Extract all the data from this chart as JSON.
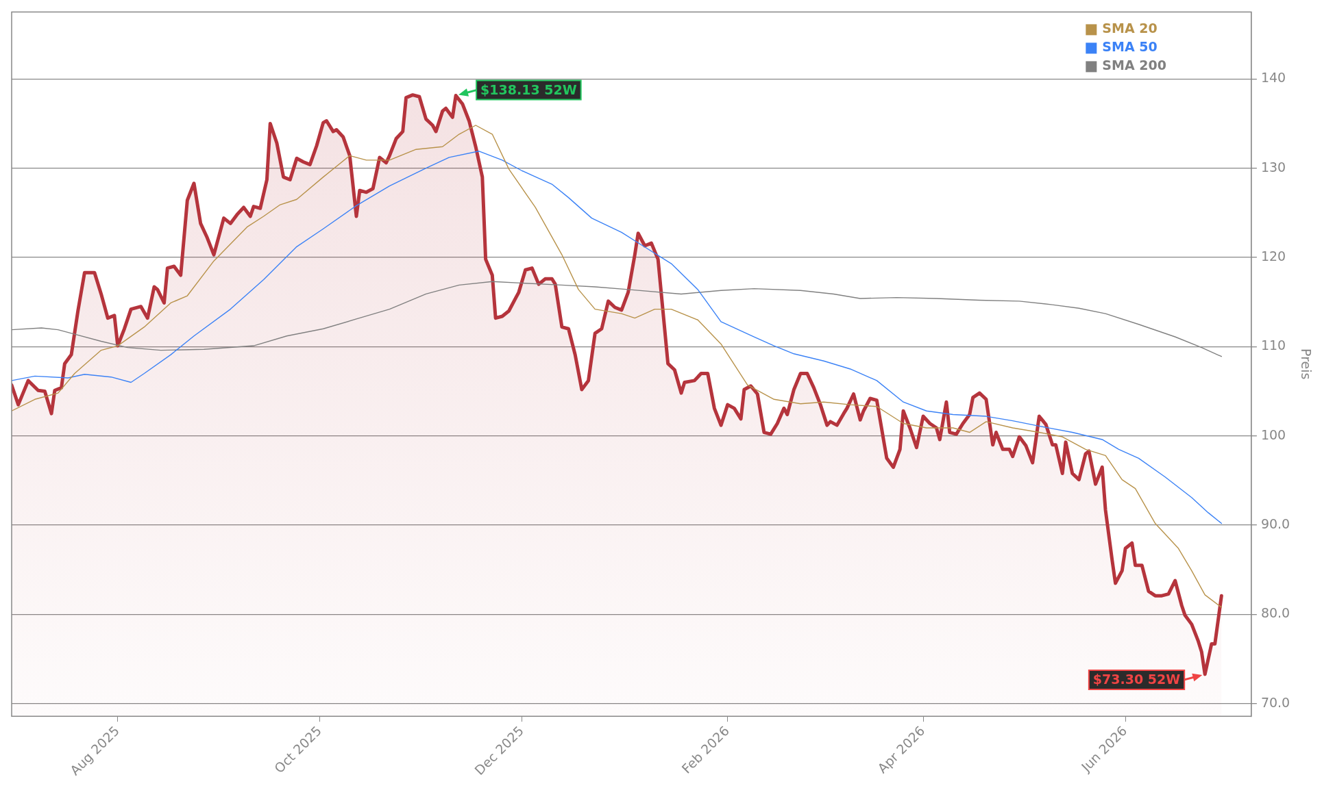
{
  "chart_data": {
    "type": "line",
    "ylabel": "Preis",
    "xlim": [
      "2025-06-30",
      "2026-07-09"
    ],
    "ylim": [
      68.6,
      147.5
    ],
    "xticks": [
      {
        "value": "2025-08-01",
        "label": "Aug 2025"
      },
      {
        "value": "2025-10-01",
        "label": "Oct 2025"
      },
      {
        "value": "2025-12-01",
        "label": "Dec 2025"
      },
      {
        "value": "2026-02-01",
        "label": "Feb 2026"
      },
      {
        "value": "2026-04-01",
        "label": "Apr 2026"
      },
      {
        "value": "2026-06-01",
        "label": "Jun 2026"
      }
    ],
    "yticks": [
      {
        "value": 70,
        "label": "70.0"
      },
      {
        "value": 80,
        "label": "80.0"
      },
      {
        "value": 90,
        "label": "90.0"
      },
      100,
      110,
      120,
      130,
      140
    ],
    "grid": "y",
    "legend": "top right",
    "marker": "none",
    "line_style": "solid",
    "annotations": [
      {
        "text": "$138.13 52W",
        "x": "2025-11-11",
        "y": 138.13
      },
      {
        "text": "$73.30 52W",
        "x": "2026-06-25",
        "y": 73.3
      }
    ],
    "series": [
      {
        "type": "area",
        "color": "#b5343c",
        "x": [
          "2025-06-30",
          "2025-07-02",
          "2025-07-05",
          "2025-07-08",
          "2025-07-10",
          "2025-07-12",
          "2025-07-13",
          "2025-07-15",
          "2025-07-16",
          "2025-07-18",
          "2025-07-20",
          "2025-07-22",
          "2025-07-25",
          "2025-07-27",
          "2025-07-29",
          "2025-07-31",
          "2025-08-01",
          "2025-08-03",
          "2025-08-05",
          "2025-08-08",
          "2025-08-10",
          "2025-08-12",
          "2025-08-13",
          "2025-08-15",
          "2025-08-16",
          "2025-08-18",
          "2025-08-20",
          "2025-08-22",
          "2025-08-24",
          "2025-08-26",
          "2025-08-28",
          "2025-08-30",
          "2025-09-02",
          "2025-09-04",
          "2025-09-06",
          "2025-09-08",
          "2025-09-10",
          "2025-09-11",
          "2025-09-13",
          "2025-09-15",
          "2025-09-16",
          "2025-09-18",
          "2025-09-20",
          "2025-09-22",
          "2025-09-24",
          "2025-09-26",
          "2025-09-28",
          "2025-09-30",
          "2025-10-02",
          "2025-10-03",
          "2025-10-05",
          "2025-10-06",
          "2025-10-08",
          "2025-10-10",
          "2025-10-12",
          "2025-10-13",
          "2025-10-15",
          "2025-10-17",
          "2025-10-19",
          "2025-10-21",
          "2025-10-22",
          "2025-10-24",
          "2025-10-26",
          "2025-10-27",
          "2025-10-29",
          "2025-10-31",
          "2025-11-02",
          "2025-11-04",
          "2025-11-05",
          "2025-11-07",
          "2025-11-08",
          "2025-11-10",
          "2025-11-11",
          "2025-11-13",
          "2025-11-15",
          "2025-11-17",
          "2025-11-19",
          "2025-11-20",
          "2025-11-22",
          "2025-11-23",
          "2025-11-25",
          "2025-11-27",
          "2025-11-29",
          "2025-11-30",
          "2025-12-02",
          "2025-12-04",
          "2025-12-06",
          "2025-12-08",
          "2025-12-10",
          "2025-12-11",
          "2025-12-13",
          "2025-12-15",
          "2025-12-17",
          "2025-12-19",
          "2025-12-21",
          "2025-12-23",
          "2025-12-25",
          "2025-12-27",
          "2025-12-29",
          "2025-12-31",
          "2026-01-02",
          "2026-01-04",
          "2026-01-05",
          "2026-01-07",
          "2026-01-09",
          "2026-01-11",
          "2026-01-13",
          "2026-01-14",
          "2026-01-16",
          "2026-01-18",
          "2026-01-19",
          "2026-01-22",
          "2026-01-24",
          "2026-01-26",
          "2026-01-28",
          "2026-01-30",
          "2026-02-01",
          "2026-02-03",
          "2026-02-05",
          "2026-02-06",
          "2026-02-08",
          "2026-02-10",
          "2026-02-12",
          "2026-02-14",
          "2026-02-16",
          "2026-02-18",
          "2026-02-19",
          "2026-02-21",
          "2026-02-23",
          "2026-02-25",
          "2026-02-27",
          "2026-03-01",
          "2026-03-03",
          "2026-03-04",
          "2026-03-06",
          "2026-03-08",
          "2026-03-09",
          "2026-03-11",
          "2026-03-13",
          "2026-03-14",
          "2026-03-16",
          "2026-03-18",
          "2026-03-21",
          "2026-03-23",
          "2026-03-25",
          "2026-03-26",
          "2026-03-28",
          "2026-03-30",
          "2026-04-01",
          "2026-04-03",
          "2026-04-05",
          "2026-04-06",
          "2026-04-08",
          "2026-04-09",
          "2026-04-11",
          "2026-04-13",
          "2026-04-15",
          "2026-04-16",
          "2026-04-18",
          "2026-04-20",
          "2026-04-22",
          "2026-04-23",
          "2026-04-25",
          "2026-04-27",
          "2026-04-28",
          "2026-04-30",
          "2026-05-02",
          "2026-05-04",
          "2026-05-06",
          "2026-05-08",
          "2026-05-10",
          "2026-05-11",
          "2026-05-13",
          "2026-05-14",
          "2026-05-16",
          "2026-05-18",
          "2026-05-20",
          "2026-05-21",
          "2026-05-23",
          "2026-05-25",
          "2026-05-26",
          "2026-05-28",
          "2026-05-29",
          "2026-05-31",
          "2026-06-01",
          "2026-06-03",
          "2026-06-04",
          "2026-06-06",
          "2026-06-08",
          "2026-06-10",
          "2026-06-12",
          "2026-06-14",
          "2026-06-16",
          "2026-06-18",
          "2026-06-19",
          "2026-06-21",
          "2026-06-23",
          "2026-06-24",
          "2026-06-25",
          "2026-06-27",
          "2026-06-28",
          "2026-06-30"
        ],
        "values": [
          105.7,
          103.5,
          106.2,
          105.1,
          105,
          102.5,
          105.1,
          105.4,
          108.1,
          109.1,
          114,
          118.3,
          118.3,
          115.9,
          113.2,
          113.5,
          110.1,
          112,
          114.2,
          114.5,
          113.2,
          116.7,
          116.4,
          114.9,
          118.8,
          119,
          118,
          126.4,
          128.3,
          123.8,
          122.2,
          120.3,
          124.4,
          123.8,
          124.8,
          125.6,
          124.6,
          125.7,
          125.5,
          128.7,
          135,
          132.8,
          129,
          128.7,
          131.1,
          130.7,
          130.4,
          132.5,
          135.1,
          135.3,
          134.1,
          134.3,
          133.5,
          131.4,
          124.6,
          127.5,
          127.3,
          127.7,
          131.2,
          130.6,
          131.4,
          133.3,
          134.1,
          137.9,
          138.2,
          138,
          135.5,
          134.8,
          134.1,
          136.4,
          136.7,
          135.7,
          138.13,
          137.2,
          135.3,
          132.4,
          129,
          119.8,
          118,
          113.2,
          113.4,
          114,
          115.4,
          116.1,
          118.6,
          118.8,
          117,
          117.6,
          117.6,
          117,
          112.2,
          112,
          109.1,
          105.2,
          106.2,
          111.5,
          112,
          115.1,
          114.4,
          114.1,
          116.1,
          120.3,
          122.7,
          121.3,
          121.6,
          119.8,
          112,
          108.1,
          107.4,
          104.8,
          106,
          106.2,
          107,
          107,
          103.1,
          101.2,
          103.5,
          103.1,
          101.9,
          105.2,
          105.6,
          104.7,
          100.4,
          100.2,
          101.4,
          103.1,
          102.4,
          105.2,
          107,
          107,
          105.4,
          103.5,
          101.2,
          101.6,
          101.2,
          102.5,
          103.1,
          104.7,
          101.8,
          102.8,
          104.2,
          104,
          97.5,
          96.5,
          98.5,
          102.8,
          100.9,
          98.7,
          102.2,
          101.4,
          100.9,
          99.6,
          103.8,
          100.4,
          100.2,
          101.4,
          102.4,
          104.3,
          104.8,
          104.1,
          99,
          100.4,
          98.5,
          98.5,
          97.7,
          99.9,
          98.9,
          97,
          102.2,
          101.3,
          99,
          99,
          95.8,
          99.3,
          95.8,
          95.1,
          98,
          98.3,
          94.6,
          96.5,
          91.7,
          86.1,
          83.5,
          84.9,
          87.4,
          88,
          85.5,
          85.5,
          82.6,
          82.1,
          82.1,
          82.3,
          83.8,
          81,
          79.9,
          78.9,
          77,
          75.8,
          73.3,
          76.7,
          76.7,
          82.1
        ]
      },
      {
        "type": "line",
        "name": "SMA 20",
        "color": "#b8924a",
        "x": [
          "2025-06-30",
          "2025-07-07",
          "2025-07-14",
          "2025-07-19",
          "2025-07-27",
          "2025-08-01",
          "2025-08-09",
          "2025-08-17",
          "2025-08-22",
          "2025-08-30",
          "2025-09-09",
          "2025-09-14",
          "2025-09-19",
          "2025-09-24",
          "2025-10-02",
          "2025-10-10",
          "2025-10-15",
          "2025-10-22",
          "2025-10-30",
          "2025-11-07",
          "2025-11-12",
          "2025-11-17",
          "2025-11-22",
          "2025-11-27",
          "2025-12-05",
          "2025-12-13",
          "2025-12-18",
          "2025-12-23",
          "2025-12-31",
          "2026-01-04",
          "2026-01-10",
          "2026-01-15",
          "2026-01-23",
          "2026-01-30",
          "2026-02-07",
          "2026-02-15",
          "2026-02-23",
          "2026-03-02",
          "2026-03-10",
          "2026-03-18",
          "2026-03-26",
          "2026-04-02",
          "2026-04-10",
          "2026-04-15",
          "2026-04-20",
          "2026-04-28",
          "2026-05-06",
          "2026-05-13",
          "2026-05-20",
          "2026-05-26",
          "2026-05-31",
          "2026-06-04",
          "2026-06-10",
          "2026-06-17",
          "2026-06-21",
          "2026-06-25",
          "2026-06-30"
        ],
        "values": [
          102.8,
          104.1,
          104.8,
          107,
          109.6,
          110.1,
          112.2,
          114.9,
          115.7,
          119.6,
          123.4,
          124.6,
          125.9,
          126.5,
          129,
          131.4,
          130.9,
          130.9,
          132.1,
          132.4,
          133.8,
          134.8,
          133.8,
          129.9,
          125.6,
          120.3,
          116.4,
          114.2,
          113.7,
          113.2,
          114.2,
          114.2,
          113,
          110.3,
          105.7,
          104.1,
          103.6,
          103.8,
          103.5,
          103.3,
          101.4,
          100.9,
          100.9,
          100.4,
          101.6,
          100.9,
          100.4,
          99.9,
          98.5,
          97.8,
          95.1,
          94.1,
          90.2,
          87.4,
          84.9,
          82.2,
          80.8
        ]
      },
      {
        "type": "line",
        "name": "SMA 50",
        "color": "#3b82f6",
        "x": [
          "2025-06-30",
          "2025-07-07",
          "2025-07-17",
          "2025-07-22",
          "2025-07-30",
          "2025-08-05",
          "2025-08-09",
          "2025-08-17",
          "2025-08-24",
          "2025-09-04",
          "2025-09-14",
          "2025-09-24",
          "2025-10-02",
          "2025-10-12",
          "2025-10-22",
          "2025-11-02",
          "2025-11-09",
          "2025-11-18",
          "2025-11-25",
          "2025-12-01",
          "2025-12-10",
          "2025-12-15",
          "2025-12-22",
          "2025-12-31",
          "2026-01-06",
          "2026-01-15",
          "2026-01-23",
          "2026-01-30",
          "2026-02-09",
          "2026-02-15",
          "2026-02-21",
          "2026-03-02",
          "2026-03-10",
          "2026-03-18",
          "2026-03-26",
          "2026-04-02",
          "2026-04-10",
          "2026-04-20",
          "2026-04-28",
          "2026-05-06",
          "2026-05-16",
          "2026-05-25",
          "2026-05-30",
          "2026-06-05",
          "2026-06-13",
          "2026-06-21",
          "2026-06-26",
          "2026-06-30"
        ],
        "values": [
          106.2,
          106.7,
          106.5,
          106.9,
          106.6,
          106,
          107,
          109.1,
          111.2,
          114.2,
          117.5,
          121.2,
          123.2,
          125.8,
          128,
          130,
          131.2,
          131.9,
          130.9,
          129.7,
          128.2,
          126.7,
          124.4,
          122.8,
          121.4,
          119.3,
          116.4,
          112.8,
          111.1,
          110.1,
          109.2,
          108.4,
          107.5,
          106.2,
          103.8,
          102.8,
          102.4,
          102.2,
          101.7,
          101.1,
          100.4,
          99.6,
          98.5,
          97.5,
          95.4,
          93.1,
          91.4,
          90.2
        ]
      },
      {
        "type": "line",
        "name": "SMA 200",
        "color": "#808080",
        "x": [
          "2025-06-30",
          "2025-07-09",
          "2025-07-14",
          "2025-07-19",
          "2025-07-27",
          "2025-08-04",
          "2025-08-14",
          "2025-08-27",
          "2025-09-11",
          "2025-09-21",
          "2025-10-02",
          "2025-10-12",
          "2025-10-22",
          "2025-11-02",
          "2025-11-12",
          "2025-11-22",
          "2025-12-02",
          "2025-12-13",
          "2025-12-23",
          "2026-01-02",
          "2026-01-18",
          "2026-01-30",
          "2026-02-09",
          "2026-02-23",
          "2026-03-05",
          "2026-03-13",
          "2026-03-24",
          "2026-04-05",
          "2026-04-18",
          "2026-04-30",
          "2026-05-10",
          "2026-05-18",
          "2026-05-26",
          "2026-06-05",
          "2026-06-16",
          "2026-06-24",
          "2026-06-30"
        ],
        "values": [
          111.9,
          112.1,
          111.9,
          111.4,
          110.6,
          109.9,
          109.6,
          109.7,
          110.1,
          111.2,
          112,
          113.1,
          114.2,
          115.9,
          116.9,
          117.3,
          117.1,
          116.9,
          116.7,
          116.4,
          115.9,
          116.3,
          116.5,
          116.3,
          115.9,
          115.4,
          115.5,
          115.4,
          115.2,
          115.1,
          114.7,
          114.3,
          113.7,
          112.5,
          111.1,
          109.9,
          108.9
        ]
      }
    ]
  }
}
